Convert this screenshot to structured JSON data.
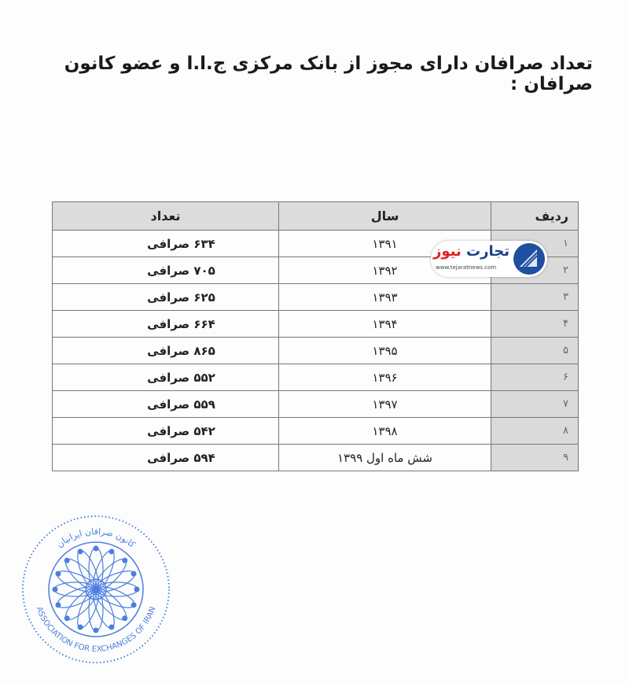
{
  "title": "تعداد صرافان دارای مجوز از بانک مرکزی ج.ا.ا و عضو کانون صرافان :",
  "table": {
    "headers": {
      "index": "ردیف",
      "year": "سال",
      "count": "تعداد"
    },
    "rows": [
      {
        "index": "۱",
        "year": "۱۳۹۱",
        "count": "۶۳۴ صرافی"
      },
      {
        "index": "۲",
        "year": "۱۳۹۲",
        "count": "۷۰۵ صرافی"
      },
      {
        "index": "۳",
        "year": "۱۳۹۳",
        "count": "۶۲۵ صرافی"
      },
      {
        "index": "۴",
        "year": "۱۳۹۴",
        "count": "۶۶۴ صرافی"
      },
      {
        "index": "۵",
        "year": "۱۳۹۵",
        "count": "۸۶۵ صرافی"
      },
      {
        "index": "۶",
        "year": "۱۳۹۶",
        "count": "۵۵۲ صرافی"
      },
      {
        "index": "۷",
        "year": "۱۳۹۷",
        "count": "۵۵۹ صرافی"
      },
      {
        "index": "۸",
        "year": "۱۳۹۸",
        "count": "۵۴۲ صرافی"
      },
      {
        "index": "۹",
        "year": "شش ماه اول ۱۳۹۹",
        "count": "۵۹۴ صرافی"
      }
    ]
  },
  "watermark": {
    "brand_blue": "تجارت",
    "brand_red": "نیوز",
    "url": "www.tejaratnews.com"
  },
  "stamp": {
    "text_fa": "کانون صرافان ایرانیان",
    "text_en": "ASSOCIATION FOR EXCHANGES OF IRAN",
    "color": "#4a7fe0"
  }
}
